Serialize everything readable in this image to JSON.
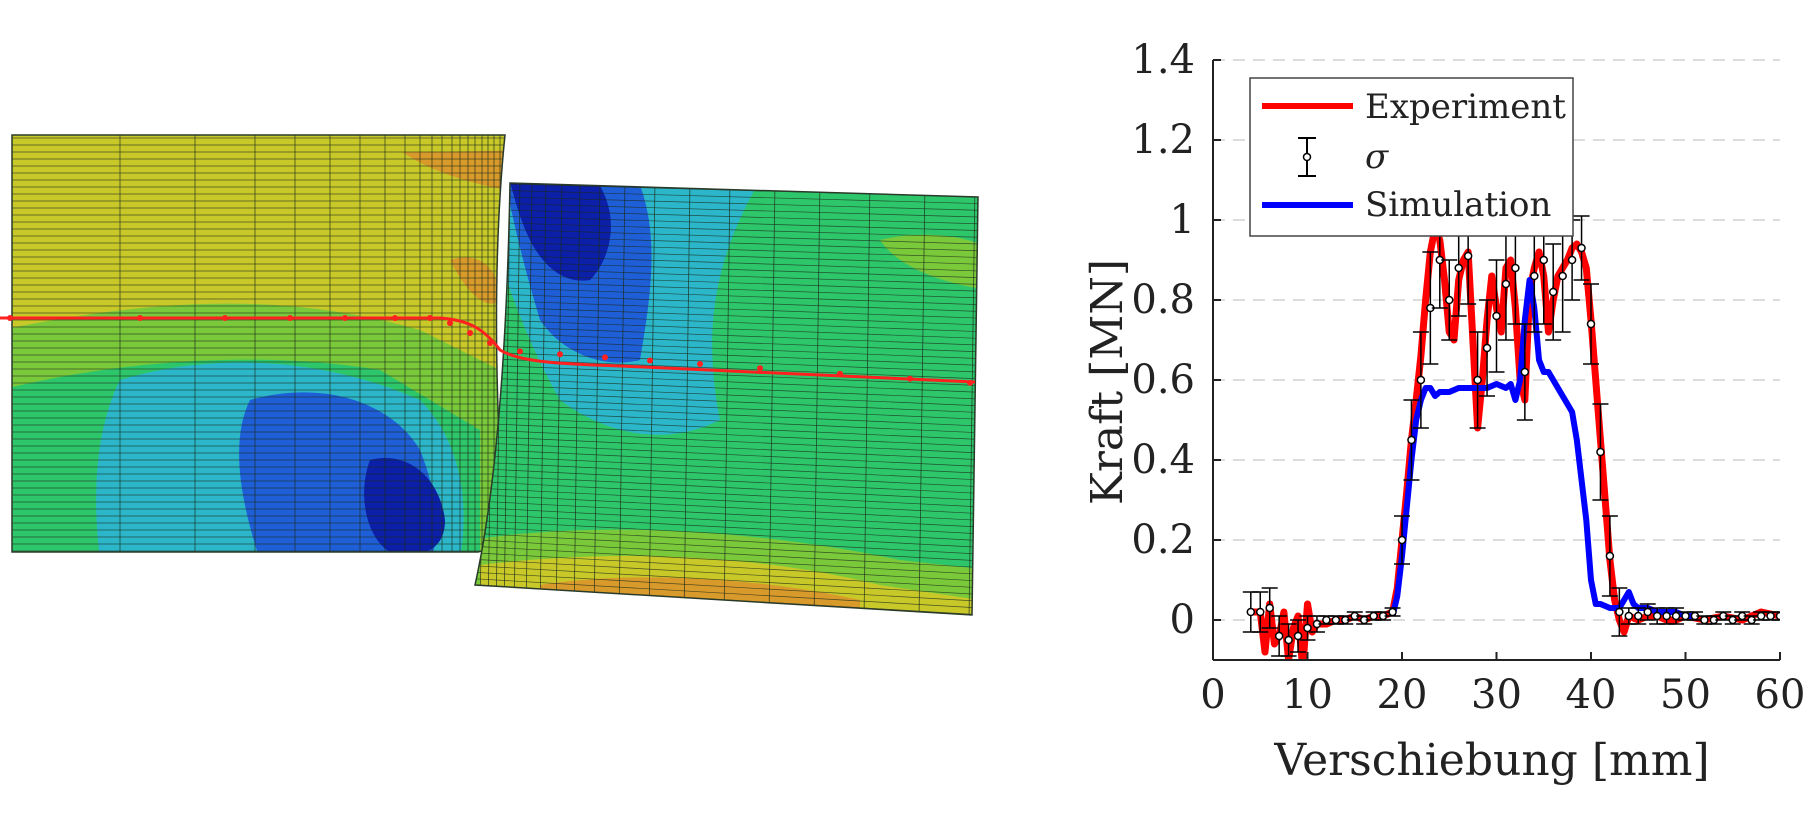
{
  "colors": {
    "experiment": "#ff0000",
    "simulation": "#0000ff",
    "sigma": "#000000",
    "grid": "#d0d0d0",
    "fem_edge_line": "#ff2020"
  },
  "fem_model": {
    "description_icon": "fem-contour-mesh",
    "contour_colors": [
      "#0b1fa8",
      "#1e5fd8",
      "#2bb7c9",
      "#2ec66a",
      "#7ac93a",
      "#c8c829",
      "#d89a2a"
    ]
  },
  "chart_data": {
    "type": "line",
    "xlabel": "Verschiebung [mm]",
    "ylabel": "Kraft [MN]",
    "xlim": [
      0,
      60
    ],
    "ylim": [
      -0.1,
      1.4
    ],
    "xticks": [
      0,
      10,
      20,
      30,
      40,
      50,
      60
    ],
    "xtick_labels": [
      "0",
      "10",
      "20",
      "30",
      "40",
      "50",
      "60"
    ],
    "yticks": [
      0,
      0.2,
      0.4,
      0.6,
      0.8,
      1,
      1.2,
      1.4
    ],
    "ytick_labels": [
      "0",
      "0.2",
      "0.4",
      "0.6",
      "0.8",
      "1",
      "1.2",
      "1.4"
    ],
    "grid": "y-dashed",
    "legend": "top-left",
    "series": [
      {
        "name": "Experiment",
        "x": [
          4,
          5,
          5.5,
          6,
          6.5,
          7,
          7.5,
          8,
          8.5,
          9,
          9.5,
          10,
          10.5,
          11,
          12,
          13,
          14,
          15,
          16,
          17,
          18,
          19,
          19.5,
          20,
          20.5,
          21,
          21.5,
          22,
          22.5,
          23,
          23.5,
          24,
          24.5,
          25,
          25.5,
          26,
          26.5,
          27,
          27.5,
          28,
          28.5,
          29,
          29.5,
          30,
          30.5,
          31,
          31.5,
          32,
          32.5,
          33,
          33.5,
          34,
          34.5,
          35,
          35.5,
          36,
          36.5,
          37,
          37.5,
          38,
          38.5,
          39,
          39.5,
          40,
          40.5,
          41,
          41.5,
          42,
          42.5,
          43,
          43.5,
          44,
          45,
          46,
          47,
          48,
          49,
          50,
          52,
          54,
          56,
          58,
          60
        ],
        "y": [
          0.02,
          0.02,
          -0.08,
          0.04,
          -0.06,
          -0.04,
          0.02,
          -0.1,
          -0.02,
          0.01,
          -0.12,
          0.04,
          -0.03,
          -0.01,
          -0.01,
          0.0,
          0.0,
          0.01,
          0.0,
          0.01,
          0.01,
          0.02,
          0.08,
          0.2,
          0.32,
          0.45,
          0.55,
          0.66,
          0.8,
          0.92,
          0.98,
          0.95,
          0.85,
          0.72,
          0.7,
          0.85,
          0.9,
          0.92,
          0.7,
          0.48,
          0.6,
          0.75,
          0.86,
          0.78,
          0.72,
          0.88,
          0.9,
          0.78,
          0.6,
          0.55,
          0.82,
          0.88,
          0.92,
          0.86,
          0.72,
          0.8,
          0.86,
          0.88,
          0.9,
          0.93,
          0.94,
          0.92,
          0.88,
          0.75,
          0.6,
          0.45,
          0.3,
          0.15,
          0.05,
          0.0,
          -0.03,
          0.01,
          0.0,
          0.01,
          0.01,
          0.0,
          0.0,
          0.01,
          0.0,
          0.01,
          0.0,
          0.02,
          0.01
        ]
      },
      {
        "name": "σ",
        "x": [
          4,
          5,
          6,
          7,
          8,
          9,
          10,
          11,
          12,
          13,
          14,
          15,
          16,
          17,
          18,
          19,
          20,
          21,
          22,
          23,
          24,
          25,
          26,
          27,
          28,
          29,
          30,
          31,
          32,
          33,
          34,
          35,
          36,
          37,
          38,
          39,
          40,
          41,
          42,
          43,
          44,
          45,
          46,
          47,
          48,
          49,
          50,
          51,
          52,
          53,
          54,
          55,
          56,
          57,
          58,
          59,
          60
        ],
        "y": [
          0.02,
          0.02,
          0.03,
          -0.04,
          -0.05,
          -0.04,
          -0.02,
          -0.01,
          0.0,
          0.0,
          0.0,
          0.01,
          0.0,
          0.01,
          0.01,
          0.02,
          0.2,
          0.45,
          0.6,
          0.78,
          0.9,
          0.8,
          0.88,
          0.91,
          0.6,
          0.68,
          0.76,
          0.84,
          0.88,
          0.62,
          0.86,
          0.9,
          0.82,
          0.86,
          0.9,
          0.93,
          0.74,
          0.42,
          0.16,
          0.02,
          0.01,
          0.01,
          0.02,
          0.01,
          0.01,
          0.01,
          0.01,
          0.01,
          0.0,
          0.0,
          0.01,
          0.0,
          0.01,
          0.0,
          0.01,
          0.01,
          0.01
        ],
        "err": [
          0.05,
          0.05,
          0.05,
          0.05,
          0.04,
          0.04,
          0.03,
          0.02,
          0.01,
          0.01,
          0.01,
          0.01,
          0.01,
          0.01,
          0.01,
          0.01,
          0.06,
          0.1,
          0.12,
          0.14,
          0.12,
          0.1,
          0.12,
          0.12,
          0.12,
          0.12,
          0.14,
          0.14,
          0.14,
          0.12,
          0.14,
          0.16,
          0.12,
          0.14,
          0.1,
          0.08,
          0.1,
          0.12,
          0.1,
          0.06,
          0.02,
          0.02,
          0.02,
          0.02,
          0.02,
          0.02,
          0.01,
          0.01,
          0.01,
          0.01,
          0.01,
          0.01,
          0.01,
          0.01,
          0.01,
          0.01,
          0.01
        ]
      },
      {
        "name": "Simulation",
        "x": [
          19,
          19.5,
          20,
          20.5,
          21,
          21.5,
          22,
          22.5,
          23,
          23.5,
          24,
          25,
          26,
          27,
          28,
          29,
          30,
          31,
          31.5,
          32,
          32.5,
          33,
          33.5,
          34,
          34.5,
          35,
          35.5,
          36,
          37,
          38,
          38.5,
          39,
          39.5,
          40,
          40.5,
          41,
          42,
          43,
          43.5,
          44,
          44.5,
          45,
          46,
          47,
          48,
          49,
          50,
          51
        ],
        "y": [
          0.01,
          0.06,
          0.16,
          0.28,
          0.4,
          0.5,
          0.55,
          0.58,
          0.58,
          0.56,
          0.57,
          0.57,
          0.58,
          0.58,
          0.58,
          0.58,
          0.59,
          0.58,
          0.59,
          0.55,
          0.6,
          0.75,
          0.85,
          0.78,
          0.65,
          0.62,
          0.62,
          0.6,
          0.56,
          0.52,
          0.45,
          0.35,
          0.25,
          0.1,
          0.04,
          0.04,
          0.03,
          0.03,
          0.05,
          0.07,
          0.04,
          0.03,
          0.03,
          0.02,
          0.02,
          0.02,
          0.01,
          0.01
        ]
      }
    ]
  }
}
